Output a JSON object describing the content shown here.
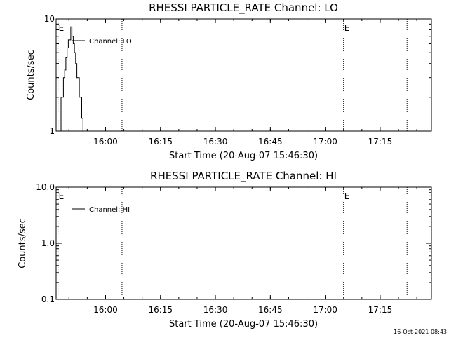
{
  "footer_timestamp": "16-Oct-2021 08:43",
  "chart_data": [
    {
      "type": "line",
      "title": "RHESSI PARTICLE_RATE Channel: LO",
      "xlabel": "Start Time (20-Aug-07 15:46:30)",
      "ylabel": "Counts/sec",
      "y_scale": "log",
      "ylim": [
        1,
        10
      ],
      "y_ticks": [
        1,
        10
      ],
      "y_tick_labels": [
        "1",
        "10"
      ],
      "xlim": [
        "15:46:30",
        "17:29:00"
      ],
      "x_ticks": [
        "16:00",
        "16:15",
        "16:30",
        "16:45",
        "17:00",
        "17:15"
      ],
      "grid": false,
      "legend_position": "top-left",
      "event_lines": [
        {
          "time": "15:47:00",
          "label": "E",
          "style": "dotted"
        },
        {
          "time": "16:04:30",
          "label": "",
          "style": "dotted"
        },
        {
          "time": "17:05:00",
          "label": "E",
          "style": "dotted"
        },
        {
          "time": "17:22:20",
          "label": "",
          "style": "dotted"
        }
      ],
      "series": [
        {
          "name": "Channel: LO",
          "x": [
            "15:47:10",
            "15:47:30",
            "15:47:50",
            "15:48:10",
            "15:48:30",
            "15:48:50",
            "15:49:10",
            "15:49:30",
            "15:49:50",
            "15:50:10",
            "15:50:30",
            "15:50:50",
            "15:51:10",
            "15:51:30",
            "15:51:50",
            "15:52:10",
            "15:52:30",
            "15:52:50",
            "15:53:10",
            "15:53:30",
            "15:53:50"
          ],
          "y": [
            1.0,
            1.0,
            2.0,
            2.0,
            3.0,
            3.5,
            4.5,
            5.5,
            6.5,
            6.5,
            8.5,
            7.0,
            6.0,
            5.0,
            4.0,
            3.0,
            3.0,
            2.0,
            2.0,
            1.3,
            1.0
          ]
        }
      ]
    },
    {
      "type": "line",
      "title": "RHESSI PARTICLE_RATE Channel: HI",
      "xlabel": "Start Time (20-Aug-07 15:46:30)",
      "ylabel": "Counts/sec",
      "y_scale": "log",
      "ylim": [
        0.1,
        10
      ],
      "y_ticks": [
        0.1,
        1,
        10
      ],
      "y_tick_labels": [
        "0.1",
        "1.0",
        "10.0"
      ],
      "xlim": [
        "15:46:30",
        "17:29:00"
      ],
      "x_ticks": [
        "16:00",
        "16:15",
        "16:30",
        "16:45",
        "17:00",
        "17:15"
      ],
      "grid": false,
      "legend_position": "top-left",
      "event_lines": [
        {
          "time": "15:47:00",
          "label": "E",
          "style": "dotted"
        },
        {
          "time": "16:04:30",
          "label": "",
          "style": "dotted"
        },
        {
          "time": "17:05:00",
          "label": "E",
          "style": "dotted"
        },
        {
          "time": "17:22:20",
          "label": "",
          "style": "dotted"
        }
      ],
      "series": [
        {
          "name": "Channel: HI",
          "x": [],
          "y": []
        }
      ]
    }
  ]
}
